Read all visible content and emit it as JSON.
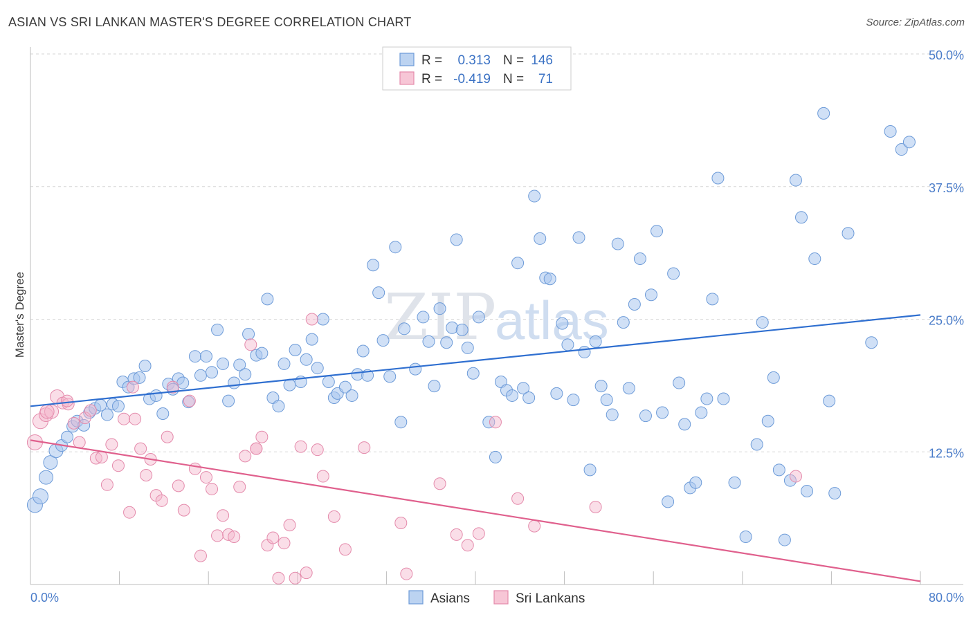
{
  "title": "ASIAN VS SRI LANKAN MASTER'S DEGREE CORRELATION CHART",
  "source": "Source: ZipAtlas.com",
  "watermark": {
    "zip": "ZIP",
    "atlas": "atlas"
  },
  "legend": {
    "r_label": "R =",
    "n_label": "N =",
    "rows": [
      {
        "r": "0.313",
        "n": "146"
      },
      {
        "r": "-0.419",
        "n": "71"
      }
    ]
  },
  "colors": {
    "asian": "#5b8fd6",
    "asian_fill": "#a9c7ee",
    "srilankan": "#e3709a",
    "srilankan_fill": "#f4b6cb"
  },
  "chart_data": {
    "type": "scatter",
    "ylabel": "Master's Degree",
    "xlim": [
      0,
      80
    ],
    "ylim": [
      0,
      50
    ],
    "x_tick_labels": [
      "0.0%",
      "80.0%"
    ],
    "y_ticks": [
      12.5,
      25.0,
      37.5,
      50.0
    ],
    "y_tick_labels": [
      "12.5%",
      "25.0%",
      "37.5%",
      "50.0%"
    ],
    "grid": true,
    "series": [
      {
        "name": "Asians",
        "trend": [
          [
            0,
            16.8
          ],
          [
            80,
            25.4
          ]
        ],
        "points": [
          [
            0.4,
            7.5
          ],
          [
            0.9,
            8.3
          ],
          [
            1.4,
            10.1
          ],
          [
            1.8,
            11.5
          ],
          [
            2.3,
            12.6
          ],
          [
            2.8,
            13.1
          ],
          [
            3.3,
            13.9
          ],
          [
            3.8,
            14.9
          ],
          [
            4.2,
            15.4
          ],
          [
            4.8,
            15.0
          ],
          [
            5.3,
            16.2
          ],
          [
            5.8,
            16.6
          ],
          [
            6.3,
            16.9
          ],
          [
            6.9,
            16.0
          ],
          [
            7.4,
            17.0
          ],
          [
            7.9,
            16.8
          ],
          [
            8.3,
            19.1
          ],
          [
            8.8,
            18.6
          ],
          [
            9.3,
            19.4
          ],
          [
            9.8,
            19.5
          ],
          [
            10.3,
            20.6
          ],
          [
            10.7,
            17.5
          ],
          [
            11.3,
            17.8
          ],
          [
            11.9,
            16.1
          ],
          [
            12.4,
            18.9
          ],
          [
            12.8,
            18.4
          ],
          [
            13.3,
            19.4
          ],
          [
            13.7,
            19.0
          ],
          [
            14.2,
            17.2
          ],
          [
            14.8,
            21.5
          ],
          [
            15.3,
            19.7
          ],
          [
            15.8,
            21.5
          ],
          [
            16.3,
            20.0
          ],
          [
            16.8,
            24.0
          ],
          [
            17.3,
            20.8
          ],
          [
            17.8,
            17.3
          ],
          [
            18.3,
            19.0
          ],
          [
            18.8,
            20.7
          ],
          [
            19.3,
            19.8
          ],
          [
            19.6,
            23.6
          ],
          [
            20.3,
            21.6
          ],
          [
            20.8,
            21.8
          ],
          [
            21.3,
            26.9
          ],
          [
            21.8,
            17.6
          ],
          [
            22.3,
            16.8
          ],
          [
            22.8,
            20.8
          ],
          [
            23.3,
            18.8
          ],
          [
            23.8,
            22.1
          ],
          [
            24.3,
            19.1
          ],
          [
            24.8,
            21.2
          ],
          [
            25.3,
            23.1
          ],
          [
            25.8,
            20.4
          ],
          [
            26.3,
            25.0
          ],
          [
            26.8,
            19.1
          ],
          [
            27.3,
            17.6
          ],
          [
            27.6,
            18.0
          ],
          [
            28.3,
            18.6
          ],
          [
            28.9,
            17.8
          ],
          [
            29.4,
            19.8
          ],
          [
            29.9,
            22.0
          ],
          [
            30.3,
            19.7
          ],
          [
            30.8,
            30.1
          ],
          [
            31.3,
            27.5
          ],
          [
            31.7,
            23.0
          ],
          [
            32.3,
            19.6
          ],
          [
            32.8,
            31.8
          ],
          [
            33.3,
            15.3
          ],
          [
            33.6,
            24.1
          ],
          [
            34.6,
            20.3
          ],
          [
            35.3,
            25.2
          ],
          [
            35.8,
            22.9
          ],
          [
            36.3,
            18.7
          ],
          [
            36.8,
            26.0
          ],
          [
            37.4,
            22.8
          ],
          [
            37.9,
            24.2
          ],
          [
            38.3,
            32.5
          ],
          [
            38.8,
            24.0
          ],
          [
            39.3,
            22.3
          ],
          [
            39.8,
            19.9
          ],
          [
            40.3,
            25.2
          ],
          [
            41.2,
            15.3
          ],
          [
            41.8,
            12.0
          ],
          [
            42.3,
            19.1
          ],
          [
            42.8,
            18.3
          ],
          [
            43.3,
            17.8
          ],
          [
            43.8,
            30.3
          ],
          [
            44.3,
            18.5
          ],
          [
            44.8,
            17.6
          ],
          [
            45.3,
            36.6
          ],
          [
            45.8,
            32.6
          ],
          [
            46.3,
            28.9
          ],
          [
            46.7,
            28.8
          ],
          [
            47.3,
            18.0
          ],
          [
            47.8,
            24.6
          ],
          [
            48.3,
            22.6
          ],
          [
            48.8,
            17.4
          ],
          [
            49.3,
            32.7
          ],
          [
            49.8,
            21.9
          ],
          [
            50.3,
            10.8
          ],
          [
            50.8,
            22.9
          ],
          [
            51.3,
            18.7
          ],
          [
            51.8,
            17.4
          ],
          [
            52.3,
            16.0
          ],
          [
            52.8,
            32.1
          ],
          [
            53.3,
            24.7
          ],
          [
            53.8,
            18.5
          ],
          [
            54.3,
            26.4
          ],
          [
            54.8,
            30.7
          ],
          [
            55.3,
            15.9
          ],
          [
            55.8,
            27.3
          ],
          [
            56.3,
            33.3
          ],
          [
            56.8,
            16.2
          ],
          [
            57.3,
            7.8
          ],
          [
            57.8,
            29.3
          ],
          [
            58.3,
            19.0
          ],
          [
            58.8,
            15.1
          ],
          [
            59.3,
            9.1
          ],
          [
            59.8,
            9.6
          ],
          [
            60.3,
            16.2
          ],
          [
            60.8,
            17.5
          ],
          [
            61.3,
            26.9
          ],
          [
            61.8,
            38.3
          ],
          [
            62.3,
            17.5
          ],
          [
            63.3,
            9.6
          ],
          [
            64.3,
            4.5
          ],
          [
            65.3,
            13.2
          ],
          [
            65.8,
            24.7
          ],
          [
            66.3,
            15.4
          ],
          [
            66.8,
            19.5
          ],
          [
            67.3,
            10.8
          ],
          [
            67.8,
            4.2
          ],
          [
            68.3,
            9.8
          ],
          [
            68.8,
            38.1
          ],
          [
            69.3,
            34.6
          ],
          [
            69.8,
            8.8
          ],
          [
            70.5,
            30.7
          ],
          [
            71.3,
            44.4
          ],
          [
            71.8,
            17.3
          ],
          [
            72.3,
            8.6
          ],
          [
            73.5,
            33.1
          ],
          [
            75.6,
            22.8
          ],
          [
            77.3,
            42.7
          ],
          [
            78.3,
            41.0
          ],
          [
            79.0,
            41.7
          ]
        ]
      },
      {
        "name": "Sri Lankans",
        "trend": [
          [
            0,
            13.6
          ],
          [
            80,
            0.3
          ]
        ],
        "points": [
          [
            0.4,
            13.4
          ],
          [
            0.9,
            15.4
          ],
          [
            1.4,
            16.0
          ],
          [
            1.9,
            16.3
          ],
          [
            2.4,
            17.7
          ],
          [
            2.9,
            17.1
          ],
          [
            3.4,
            17.0
          ],
          [
            3.9,
            15.2
          ],
          [
            4.4,
            13.4
          ],
          [
            4.9,
            15.7
          ],
          [
            5.4,
            16.4
          ],
          [
            5.9,
            11.9
          ],
          [
            6.4,
            12.0
          ],
          [
            6.9,
            9.4
          ],
          [
            7.3,
            13.2
          ],
          [
            7.9,
            11.2
          ],
          [
            8.4,
            15.6
          ],
          [
            8.9,
            6.8
          ],
          [
            9.4,
            15.6
          ],
          [
            9.9,
            12.8
          ],
          [
            10.4,
            10.3
          ],
          [
            10.8,
            11.8
          ],
          [
            11.3,
            8.4
          ],
          [
            11.8,
            7.9
          ],
          [
            12.3,
            13.9
          ],
          [
            12.8,
            18.6
          ],
          [
            13.3,
            9.3
          ],
          [
            13.8,
            7.0
          ],
          [
            14.3,
            17.3
          ],
          [
            14.8,
            10.9
          ],
          [
            15.3,
            2.7
          ],
          [
            15.8,
            10.1
          ],
          [
            16.3,
            9.0
          ],
          [
            16.8,
            4.6
          ],
          [
            17.3,
            6.5
          ],
          [
            17.8,
            4.7
          ],
          [
            18.3,
            4.5
          ],
          [
            18.8,
            9.2
          ],
          [
            19.3,
            12.1
          ],
          [
            19.8,
            22.6
          ],
          [
            20.3,
            12.8
          ],
          [
            20.8,
            13.9
          ],
          [
            21.3,
            3.7
          ],
          [
            21.8,
            4.4
          ],
          [
            22.3,
            0.6
          ],
          [
            22.8,
            3.9
          ],
          [
            23.3,
            5.6
          ],
          [
            23.8,
            0.6
          ],
          [
            24.3,
            13.0
          ],
          [
            24.8,
            1.1
          ],
          [
            25.3,
            25.0
          ],
          [
            25.8,
            12.7
          ],
          [
            26.3,
            10.2
          ],
          [
            27.3,
            6.4
          ],
          [
            28.3,
            3.3
          ],
          [
            30.0,
            12.9
          ],
          [
            33.3,
            5.8
          ],
          [
            33.8,
            1.0
          ],
          [
            36.8,
            9.5
          ],
          [
            38.3,
            4.7
          ],
          [
            39.3,
            3.7
          ],
          [
            40.3,
            4.8
          ],
          [
            41.8,
            15.3
          ],
          [
            43.8,
            8.1
          ],
          [
            45.3,
            5.5
          ],
          [
            50.8,
            7.3
          ],
          [
            68.8,
            10.2
          ],
          [
            1.5,
            16.3
          ],
          [
            3.3,
            17.3
          ],
          [
            9.2,
            18.6
          ],
          [
            20.3,
            12.8
          ]
        ]
      }
    ],
    "bottom_legend": [
      "Asians",
      "Sri Lankans"
    ]
  }
}
